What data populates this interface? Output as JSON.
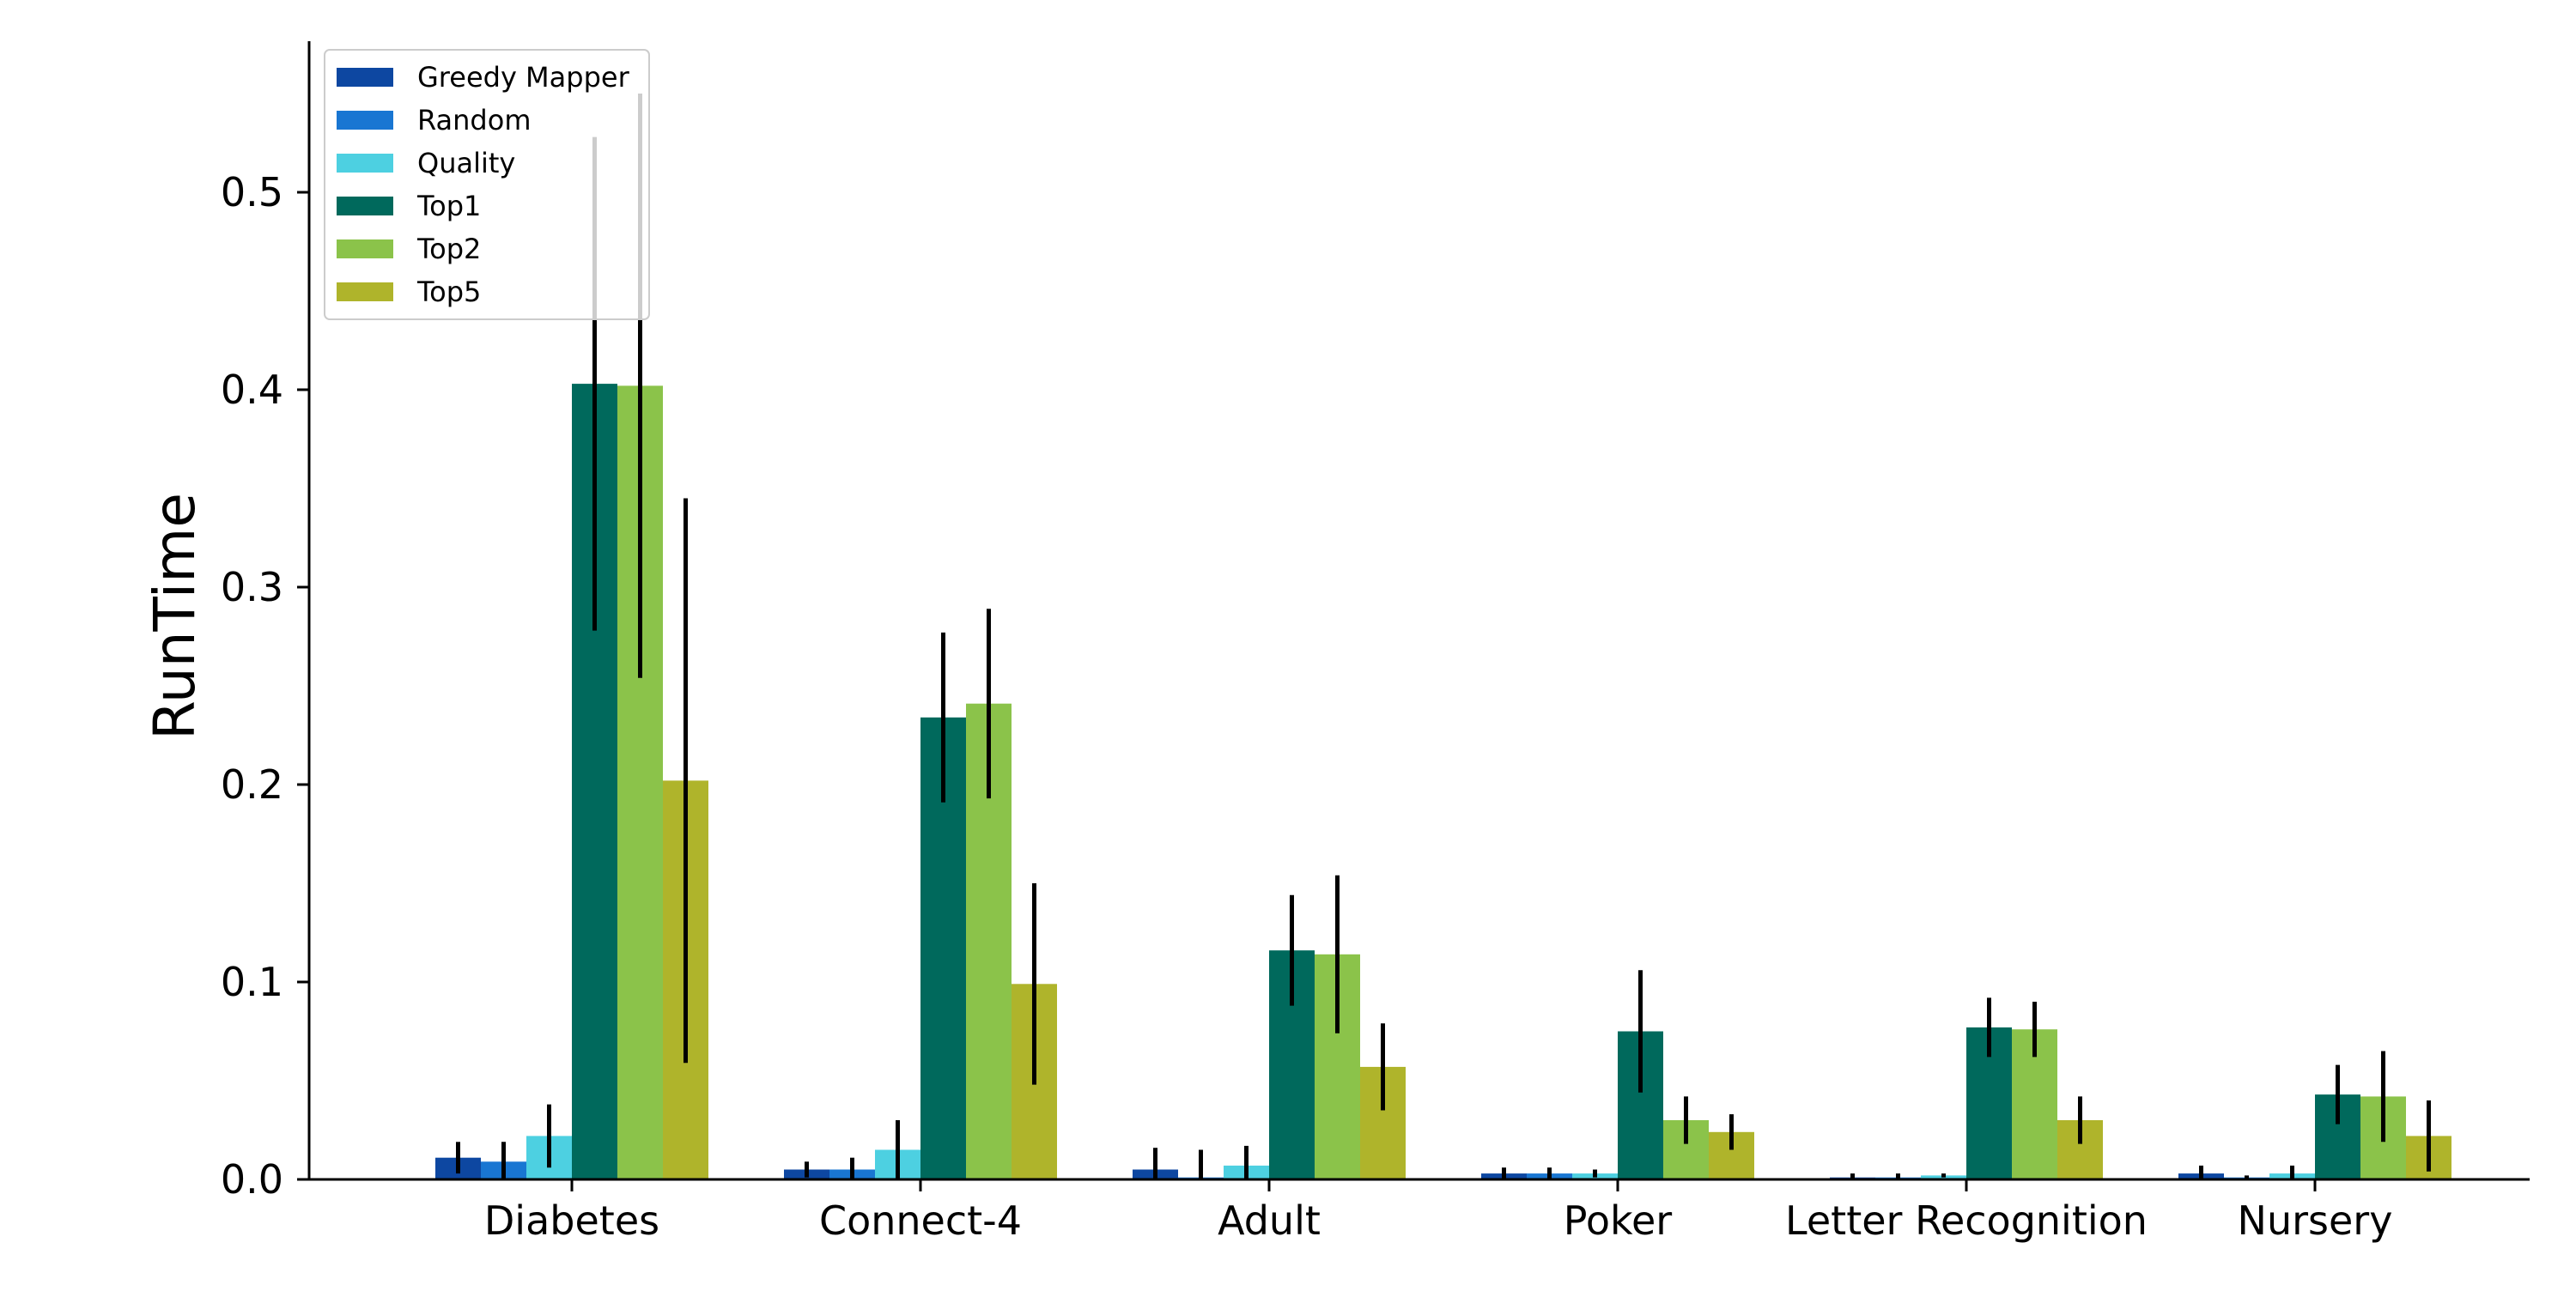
{
  "chart_data": {
    "type": "bar",
    "title": "",
    "xlabel": "",
    "ylabel": "RunTime",
    "ylim": [
      0.0,
      0.58
    ],
    "yticks": [
      0.0,
      0.1,
      0.2,
      0.3,
      0.4,
      0.5
    ],
    "ytick_labels": [
      "0.0",
      "0.1",
      "0.2",
      "0.3",
      "0.4",
      "0.5"
    ],
    "grid": false,
    "legend_position": "upper-left",
    "error_bars": true,
    "categories": [
      "Diabetes",
      "Connect-4",
      "Adult",
      "Poker",
      "Letter Recognition",
      "Nursery"
    ],
    "series": [
      {
        "name": "Greedy Mapper",
        "color": "#0d47a1",
        "values": [
          0.011,
          0.005,
          0.005,
          0.003,
          0.001,
          0.003
        ],
        "errors": [
          0.008,
          0.004,
          0.011,
          0.003,
          0.002,
          0.004
        ]
      },
      {
        "name": "Random",
        "color": "#1976d2",
        "values": [
          0.009,
          0.005,
          0.001,
          0.003,
          0.001,
          0.001
        ],
        "errors": [
          0.01,
          0.006,
          0.014,
          0.003,
          0.002,
          0.001
        ]
      },
      {
        "name": "Quality",
        "color": "#4dd0e1",
        "values": [
          0.022,
          0.015,
          0.007,
          0.003,
          0.002,
          0.003
        ],
        "errors": [
          0.016,
          0.015,
          0.01,
          0.002,
          0.001,
          0.004
        ]
      },
      {
        "name": "Top1",
        "color": "#00695c",
        "values": [
          0.403,
          0.234,
          0.116,
          0.075,
          0.077,
          0.043
        ],
        "errors": [
          0.125,
          0.043,
          0.028,
          0.031,
          0.015,
          0.015
        ]
      },
      {
        "name": "Top2",
        "color": "#8bc34a",
        "values": [
          0.402,
          0.241,
          0.114,
          0.03,
          0.076,
          0.042
        ],
        "errors": [
          0.148,
          0.048,
          0.04,
          0.012,
          0.014,
          0.023
        ]
      },
      {
        "name": "Top5",
        "color": "#afb42b",
        "values": [
          0.202,
          0.099,
          0.057,
          0.024,
          0.03,
          0.022
        ],
        "errors": [
          0.143,
          0.051,
          0.022,
          0.009,
          0.012,
          0.018
        ]
      }
    ]
  }
}
